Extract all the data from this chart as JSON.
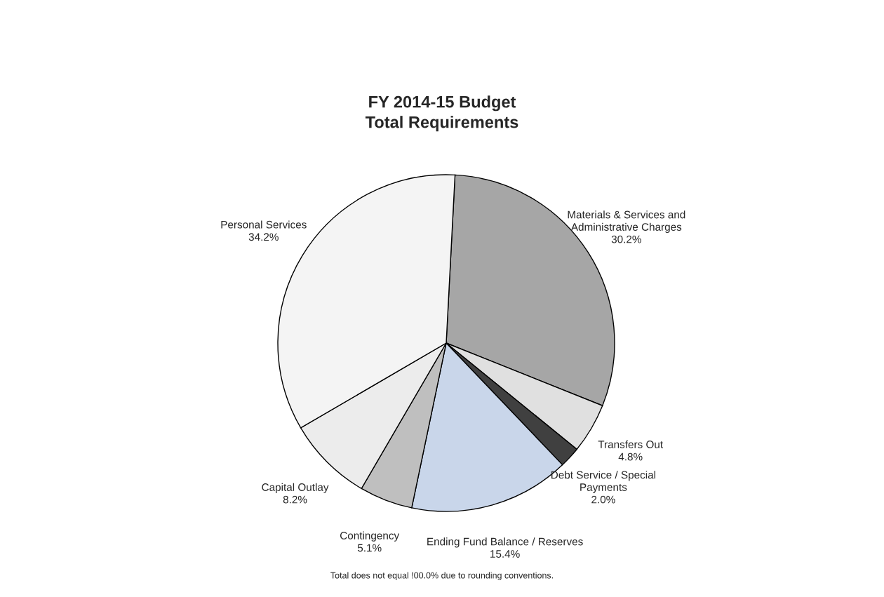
{
  "chart_data": {
    "type": "pie",
    "title": "FY 2014-15 Budget\nTotal Requirements",
    "categories": [
      "Materials & Services and\nAdministrative Charges",
      "Transfers Out",
      "Debt Service / Special\nPayments",
      "Ending Fund Balance / Reserves",
      "Contingency",
      "Capital Outlay",
      "Personal Services"
    ],
    "values": [
      30.2,
      4.8,
      2.0,
      15.4,
      5.1,
      8.2,
      34.2
    ],
    "value_labels": [
      "30.2%",
      "4.8%",
      "2.0%",
      "15.4%",
      "5.1%",
      "8.2%",
      "34.2%"
    ],
    "colors": [
      "#a6a6a6",
      "#e0e0e0",
      "#404040",
      "#c9d6ea",
      "#bfbfbf",
      "#ececec",
      "#f4f4f4"
    ],
    "annotations": [
      "Total does not equal !00.0% due to rounding conventions."
    ],
    "legend": false
  }
}
